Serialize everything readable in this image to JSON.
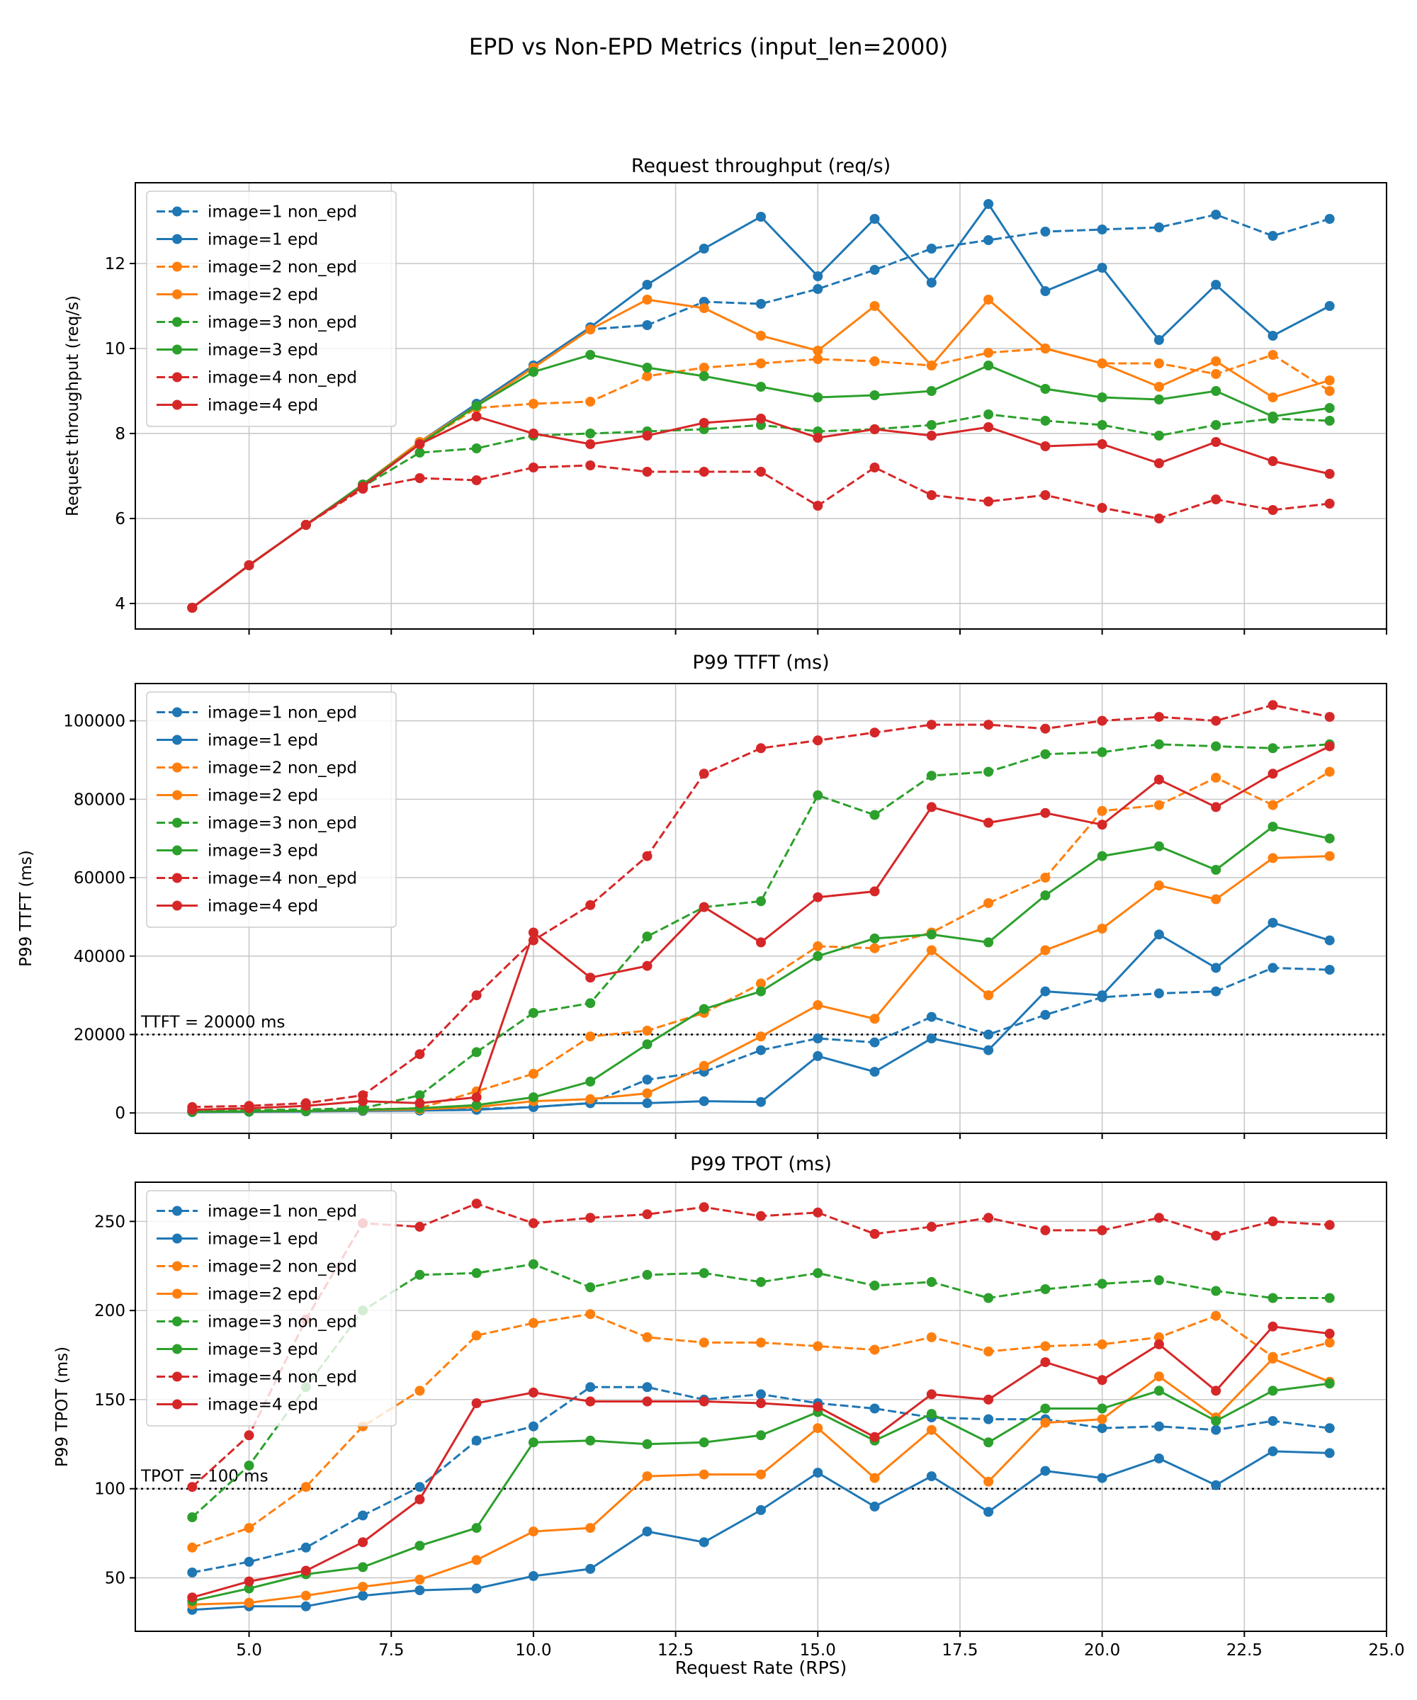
{
  "figure": {
    "title": "EPD vs Non-EPD Metrics (input_len=2000)",
    "xlabel": "Request Rate (RPS)"
  },
  "palette": {
    "blue": "#1f77b4",
    "orange": "#ff7f0e",
    "green": "#2ca02c",
    "red": "#d62728",
    "grid": "#c6c6c6",
    "threshold": "#000000"
  },
  "chart_data": [
    {
      "type": "line",
      "title": "Request throughput (req/s)",
      "ylabel": "Request throughput (req/s)",
      "x": [
        4,
        5,
        6,
        7,
        8,
        9,
        10,
        11,
        12,
        13,
        14,
        15,
        16,
        17,
        18,
        19,
        20,
        21,
        22,
        23,
        24
      ],
      "xlim": [
        3,
        25
      ],
      "ylim": [
        3.4,
        13.9
      ],
      "xticks": [
        5,
        7.5,
        10,
        12.5,
        15,
        17.5,
        20,
        22.5,
        25
      ],
      "xtick_labels": [
        "5.0",
        "7.5",
        "10.0",
        "12.5",
        "15.0",
        "17.5",
        "20.0",
        "22.5",
        "25.0"
      ],
      "yticks": [
        4,
        6,
        8,
        10,
        12
      ],
      "ytick_labels": [
        "4",
        "6",
        "8",
        "10",
        "12"
      ],
      "grid": true,
      "legend_position": "upper left",
      "threshold": null,
      "series": [
        {
          "name": "image=1 non_epd",
          "color": "#1f77b4",
          "dash": true,
          "values": [
            3.9,
            4.9,
            5.85,
            6.8,
            7.8,
            8.65,
            9.6,
            10.45,
            10.55,
            11.1,
            11.05,
            11.4,
            11.85,
            12.35,
            12.55,
            12.75,
            12.8,
            12.85,
            13.15,
            12.65,
            13.05
          ]
        },
        {
          "name": "image=1 epd",
          "color": "#1f77b4",
          "dash": false,
          "values": [
            3.9,
            4.9,
            5.85,
            6.8,
            7.8,
            8.7,
            9.6,
            10.5,
            11.5,
            12.35,
            13.1,
            11.7,
            13.05,
            11.55,
            13.4,
            11.35,
            11.9,
            10.2,
            11.5,
            10.3,
            11.0
          ]
        },
        {
          "name": "image=2 non_epd",
          "color": "#ff7f0e",
          "dash": true,
          "values": [
            3.9,
            4.9,
            5.85,
            6.75,
            7.75,
            8.6,
            8.7,
            8.75,
            9.35,
            9.55,
            9.65,
            9.75,
            9.7,
            9.6,
            9.9,
            10.0,
            9.65,
            9.65,
            9.4,
            9.85,
            9.0
          ]
        },
        {
          "name": "image=2 epd",
          "color": "#ff7f0e",
          "dash": false,
          "values": [
            3.9,
            4.9,
            5.85,
            6.8,
            7.8,
            8.65,
            9.55,
            10.45,
            11.15,
            10.95,
            10.3,
            9.95,
            11.0,
            9.6,
            11.15,
            10.0,
            9.65,
            9.1,
            9.7,
            8.85,
            9.25
          ]
        },
        {
          "name": "image=3 non_epd",
          "color": "#2ca02c",
          "dash": true,
          "values": [
            3.9,
            4.9,
            5.85,
            6.75,
            7.55,
            7.65,
            7.95,
            8.0,
            8.05,
            8.1,
            8.2,
            8.05,
            8.1,
            8.2,
            8.45,
            8.3,
            8.2,
            7.95,
            8.2,
            8.35,
            8.3
          ]
        },
        {
          "name": "image=3 epd",
          "color": "#2ca02c",
          "dash": false,
          "values": [
            3.9,
            4.9,
            5.85,
            6.8,
            7.75,
            8.65,
            9.45,
            9.85,
            9.55,
            9.35,
            9.1,
            8.85,
            8.9,
            9.0,
            9.6,
            9.05,
            8.85,
            8.8,
            9.0,
            8.4,
            8.6
          ]
        },
        {
          "name": "image=4 non_epd",
          "color": "#d62728",
          "dash": true,
          "values": [
            3.9,
            4.9,
            5.85,
            6.7,
            6.95,
            6.9,
            7.2,
            7.25,
            7.1,
            7.1,
            7.1,
            6.3,
            7.2,
            6.55,
            6.4,
            6.55,
            6.25,
            6.0,
            6.45,
            6.2,
            6.35
          ]
        },
        {
          "name": "image=4 epd",
          "color": "#d62728",
          "dash": false,
          "values": [
            3.9,
            4.9,
            5.85,
            6.75,
            7.75,
            8.4,
            8.0,
            7.75,
            7.95,
            8.25,
            8.35,
            7.9,
            8.1,
            7.95,
            8.15,
            7.7,
            7.75,
            7.3,
            7.8,
            7.35,
            7.05
          ]
        }
      ]
    },
    {
      "type": "line",
      "title": "P99 TTFT (ms)",
      "ylabel": "P99 TTFT (ms)",
      "x": [
        4,
        5,
        6,
        7,
        8,
        9,
        10,
        11,
        12,
        13,
        14,
        15,
        16,
        17,
        18,
        19,
        20,
        21,
        22,
        23,
        24
      ],
      "xlim": [
        3,
        25
      ],
      "ylim": [
        -5200,
        109500
      ],
      "xticks": [
        5,
        7.5,
        10,
        12.5,
        15,
        17.5,
        20,
        22.5,
        25
      ],
      "xtick_labels": [
        "5.0",
        "7.5",
        "10.0",
        "12.5",
        "15.0",
        "17.5",
        "20.0",
        "22.5",
        "25.0"
      ],
      "yticks": [
        0,
        20000,
        40000,
        60000,
        80000,
        100000
      ],
      "ytick_labels": [
        "0",
        "20000",
        "40000",
        "60000",
        "80000",
        "100000"
      ],
      "grid": true,
      "legend_position": "upper left",
      "threshold": {
        "value": 20000,
        "label": "TTFT = 20000 ms"
      },
      "series": [
        {
          "name": "image=1 non_epd",
          "color": "#1f77b4",
          "dash": true,
          "values": [
            300,
            400,
            500,
            600,
            800,
            1000,
            1500,
            2500,
            8500,
            10500,
            16000,
            19000,
            18000,
            24500,
            20000,
            25000,
            29500,
            30500,
            31000,
            37000,
            36500
          ]
        },
        {
          "name": "image=1 epd",
          "color": "#1f77b4",
          "dash": false,
          "values": [
            200,
            300,
            400,
            500,
            600,
            800,
            1500,
            2500,
            2500,
            3000,
            2800,
            14500,
            10500,
            19000,
            16000,
            31000,
            30000,
            45500,
            37000,
            48500,
            44000
          ]
        },
        {
          "name": "image=2 non_epd",
          "color": "#ff7f0e",
          "dash": true,
          "values": [
            400,
            500,
            700,
            900,
            1200,
            5500,
            10000,
            19500,
            21000,
            25500,
            33000,
            42500,
            42000,
            46000,
            53500,
            60000,
            77000,
            78500,
            85500,
            78500,
            87000
          ]
        },
        {
          "name": "image=2 epd",
          "color": "#ff7f0e",
          "dash": false,
          "values": [
            300,
            400,
            500,
            700,
            900,
            1500,
            3000,
            3500,
            5000,
            12000,
            19500,
            27500,
            24000,
            41500,
            30000,
            41500,
            47000,
            58000,
            54500,
            65000,
            65500
          ]
        },
        {
          "name": "image=3 non_epd",
          "color": "#2ca02c",
          "dash": true,
          "values": [
            500,
            700,
            900,
            1200,
            4500,
            15500,
            25500,
            28000,
            45000,
            52500,
            54000,
            81000,
            76000,
            86000,
            87000,
            91500,
            92000,
            94000,
            93500,
            93000,
            94000
          ]
        },
        {
          "name": "image=3 epd",
          "color": "#2ca02c",
          "dash": false,
          "values": [
            300,
            400,
            500,
            800,
            1200,
            2000,
            4000,
            8000,
            17500,
            26500,
            31000,
            40000,
            44500,
            45500,
            43500,
            55500,
            65500,
            68000,
            62000,
            73000,
            70000
          ]
        },
        {
          "name": "image=4 non_epd",
          "color": "#d62728",
          "dash": true,
          "values": [
            1500,
            1800,
            2500,
            4500,
            15000,
            30000,
            44000,
            53000,
            65500,
            86500,
            93000,
            95000,
            97000,
            99000,
            99000,
            98000,
            100000,
            101000,
            100000,
            104000,
            101000
          ]
        },
        {
          "name": "image=4 epd",
          "color": "#d62728",
          "dash": false,
          "values": [
            800,
            1200,
            1800,
            3000,
            2500,
            4000,
            46000,
            34500,
            37500,
            52500,
            43500,
            55000,
            56500,
            78000,
            74000,
            76500,
            73500,
            85000,
            78000,
            86500,
            93500
          ]
        }
      ]
    },
    {
      "type": "line",
      "title": "P99 TPOT (ms)",
      "ylabel": "P99 TPOT (ms)",
      "x": [
        4,
        5,
        6,
        7,
        8,
        9,
        10,
        11,
        12,
        13,
        14,
        15,
        16,
        17,
        18,
        19,
        20,
        21,
        22,
        23,
        24
      ],
      "xlim": [
        3,
        25
      ],
      "ylim": [
        20,
        272
      ],
      "xticks": [
        5,
        7.5,
        10,
        12.5,
        15,
        17.5,
        20,
        22.5,
        25
      ],
      "xtick_labels": [
        "5.0",
        "7.5",
        "10.0",
        "12.5",
        "15.0",
        "17.5",
        "20.0",
        "22.5",
        "25.0"
      ],
      "yticks": [
        50,
        100,
        150,
        200,
        250
      ],
      "ytick_labels": [
        "50",
        "100",
        "150",
        "200",
        "250"
      ],
      "grid": true,
      "legend_position": "upper left",
      "threshold": {
        "value": 100,
        "label": "TPOT = 100 ms"
      },
      "series": [
        {
          "name": "image=1 non_epd",
          "color": "#1f77b4",
          "dash": true,
          "values": [
            53,
            59,
            67,
            85,
            101,
            127,
            135,
            157,
            157,
            150,
            153,
            148,
            145,
            140,
            139,
            139,
            134,
            135,
            133,
            138,
            134
          ]
        },
        {
          "name": "image=1 epd",
          "color": "#1f77b4",
          "dash": false,
          "values": [
            32,
            34,
            34,
            40,
            43,
            44,
            51,
            55,
            76,
            70,
            88,
            109,
            90,
            107,
            87,
            110,
            106,
            117,
            102,
            121,
            120
          ]
        },
        {
          "name": "image=2 non_epd",
          "color": "#ff7f0e",
          "dash": true,
          "values": [
            67,
            78,
            101,
            135,
            155,
            186,
            193,
            198,
            185,
            182,
            182,
            180,
            178,
            185,
            177,
            180,
            181,
            185,
            197,
            174,
            182
          ]
        },
        {
          "name": "image=2 epd",
          "color": "#ff7f0e",
          "dash": false,
          "values": [
            35,
            36,
            40,
            45,
            49,
            60,
            76,
            78,
            107,
            108,
            108,
            134,
            106,
            133,
            104,
            137,
            139,
            163,
            140,
            173,
            160
          ]
        },
        {
          "name": "image=3 non_epd",
          "color": "#2ca02c",
          "dash": true,
          "values": [
            84,
            113,
            157,
            200,
            220,
            221,
            226,
            213,
            220,
            221,
            216,
            221,
            214,
            216,
            207,
            212,
            215,
            217,
            211,
            207,
            207
          ]
        },
        {
          "name": "image=3 epd",
          "color": "#2ca02c",
          "dash": false,
          "values": [
            37,
            44,
            52,
            56,
            68,
            78,
            126,
            127,
            125,
            126,
            130,
            143,
            127,
            142,
            126,
            145,
            145,
            155,
            138,
            155,
            159
          ]
        },
        {
          "name": "image=4 non_epd",
          "color": "#d62728",
          "dash": true,
          "values": [
            101,
            130,
            195,
            249,
            247,
            260,
            249,
            252,
            254,
            258,
            253,
            255,
            243,
            247,
            252,
            245,
            245,
            252,
            242,
            250,
            248
          ]
        },
        {
          "name": "image=4 epd",
          "color": "#d62728",
          "dash": false,
          "values": [
            39,
            48,
            54,
            70,
            94,
            148,
            154,
            149,
            149,
            149,
            148,
            146,
            129,
            153,
            150,
            171,
            161,
            181,
            155,
            191,
            187
          ]
        }
      ]
    }
  ]
}
